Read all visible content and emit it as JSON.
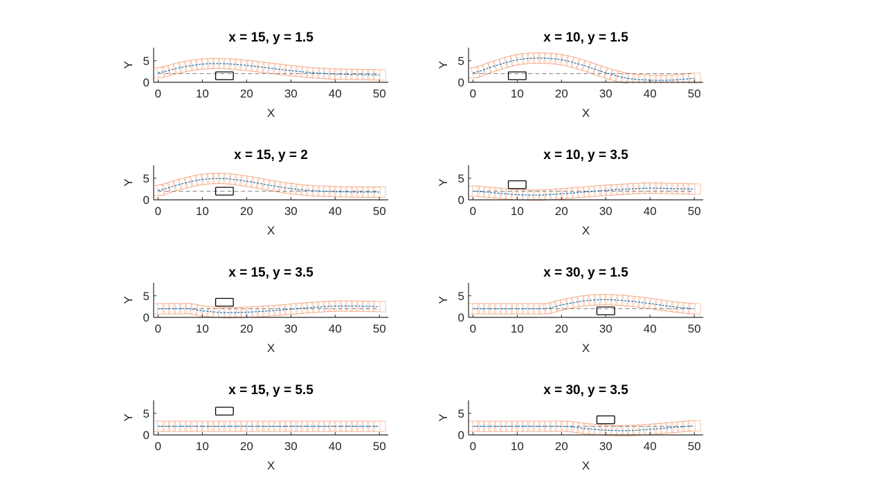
{
  "figure": {
    "background": "#ffffff"
  },
  "style": {
    "path_color": "#0072BD",
    "footprint_color": "#F4A582",
    "obstacle_color": "#000000",
    "reference_color": "#808080",
    "axis_color": "#262626"
  },
  "chart_data": [
    {
      "type": "line",
      "title": "x = 15, y = 1.5",
      "xlabel": "X",
      "ylabel": "Y",
      "xlim": [
        -1,
        52
      ],
      "ylim": [
        0,
        8
      ],
      "xticks": [
        0,
        10,
        20,
        30,
        40,
        50
      ],
      "yticks": [
        0,
        5
      ],
      "obstacle": {
        "x": 15,
        "y": 1.5,
        "length": 4,
        "width": 1.8
      },
      "reference_y": 2,
      "path": {
        "x": [
          0,
          5,
          10,
          15,
          20,
          25,
          30,
          35,
          40,
          45,
          50
        ],
        "y": [
          2.2,
          3.4,
          4.2,
          4.3,
          3.9,
          3.3,
          2.7,
          2.2,
          1.9,
          1.8,
          1.7
        ]
      }
    },
    {
      "type": "line",
      "title": "x = 10, y = 1.5",
      "xlabel": "X",
      "ylabel": "Y",
      "xlim": [
        -1,
        52
      ],
      "ylim": [
        0,
        8
      ],
      "xticks": [
        0,
        10,
        20,
        30,
        40,
        50
      ],
      "yticks": [
        0,
        5
      ],
      "obstacle": {
        "x": 10,
        "y": 1.5,
        "length": 4,
        "width": 1.8
      },
      "reference_y": 2,
      "path": {
        "x": [
          0,
          5,
          10,
          15,
          20,
          25,
          30,
          35,
          40,
          45,
          50
        ],
        "y": [
          2.2,
          3.8,
          5.2,
          5.6,
          5.2,
          3.9,
          2.2,
          0.9,
          0.5,
          0.5,
          0.9
        ]
      }
    },
    {
      "type": "line",
      "title": "x = 15, y = 2",
      "xlabel": "X",
      "ylabel": "Y",
      "xlim": [
        -1,
        52
      ],
      "ylim": [
        0,
        8
      ],
      "xticks": [
        0,
        10,
        20,
        30,
        40,
        50
      ],
      "yticks": [
        0,
        5
      ],
      "obstacle": {
        "x": 15,
        "y": 2,
        "length": 4,
        "width": 1.8
      },
      "reference_y": 2,
      "path": {
        "x": [
          0,
          5,
          10,
          15,
          20,
          25,
          30,
          35,
          40,
          45,
          50
        ],
        "y": [
          2.2,
          3.6,
          4.7,
          4.9,
          4.3,
          3.4,
          2.6,
          2.1,
          1.9,
          1.8,
          1.8
        ]
      }
    },
    {
      "type": "line",
      "title": "x = 10, y = 3.5",
      "xlabel": "X",
      "ylabel": "Y",
      "xlim": [
        -1,
        52
      ],
      "ylim": [
        0,
        8
      ],
      "xticks": [
        0,
        10,
        20,
        30,
        40,
        50
      ],
      "yticks": [
        0,
        5
      ],
      "obstacle": {
        "x": 10,
        "y": 3.5,
        "length": 4,
        "width": 1.8
      },
      "reference_y": 2,
      "path": {
        "x": [
          0,
          5,
          10,
          15,
          20,
          25,
          30,
          35,
          40,
          45,
          50
        ],
        "y": [
          2.0,
          1.6,
          1.2,
          1.1,
          1.4,
          1.8,
          2.2,
          2.5,
          2.7,
          2.6,
          2.5
        ]
      }
    },
    {
      "type": "line",
      "title": "x = 15, y = 3.5",
      "xlabel": "X",
      "ylabel": "Y",
      "xlim": [
        -1,
        52
      ],
      "ylim": [
        0,
        8
      ],
      "xticks": [
        0,
        10,
        20,
        30,
        40,
        50
      ],
      "yticks": [
        0,
        5
      ],
      "obstacle": {
        "x": 15,
        "y": 3.5,
        "length": 4,
        "width": 1.8
      },
      "reference_y": 2,
      "path": {
        "x": [
          0,
          5,
          7,
          10,
          15,
          20,
          25,
          30,
          35,
          40,
          45,
          50
        ],
        "y": [
          2.0,
          2.0,
          2.0,
          1.5,
          1.1,
          1.2,
          1.5,
          1.9,
          2.3,
          2.6,
          2.6,
          2.5
        ]
      }
    },
    {
      "type": "line",
      "title": "x = 30, y = 1.5",
      "xlabel": "X",
      "ylabel": "Y",
      "xlim": [
        -1,
        52
      ],
      "ylim": [
        0,
        8
      ],
      "xticks": [
        0,
        10,
        20,
        30,
        40,
        50
      ],
      "yticks": [
        0,
        5
      ],
      "obstacle": {
        "x": 30,
        "y": 1.5,
        "length": 4,
        "width": 1.8
      },
      "reference_y": 2,
      "path": {
        "x": [
          0,
          5,
          10,
          15,
          17,
          20,
          25,
          30,
          35,
          40,
          45,
          50
        ],
        "y": [
          2.0,
          2.0,
          2.0,
          2.0,
          2.1,
          2.9,
          3.8,
          4.1,
          3.8,
          3.2,
          2.5,
          2.0
        ]
      }
    },
    {
      "type": "line",
      "title": "x = 15, y = 5.5",
      "xlabel": "X",
      "ylabel": "Y",
      "xlim": [
        -1,
        52
      ],
      "ylim": [
        0,
        8
      ],
      "xticks": [
        0,
        10,
        20,
        30,
        40,
        50
      ],
      "yticks": [
        0,
        5
      ],
      "obstacle": {
        "x": 15,
        "y": 5.5,
        "length": 4,
        "width": 1.8
      },
      "reference_y": 2,
      "path": {
        "x": [
          0,
          10,
          20,
          30,
          40,
          50
        ],
        "y": [
          2.0,
          2.0,
          2.0,
          2.0,
          2.0,
          2.0
        ]
      }
    },
    {
      "type": "line",
      "title": "x = 30, y = 3.5",
      "xlabel": "X",
      "ylabel": "Y",
      "xlim": [
        -1,
        52
      ],
      "ylim": [
        0,
        8
      ],
      "xticks": [
        0,
        10,
        20,
        30,
        40,
        50
      ],
      "yticks": [
        0,
        5
      ],
      "obstacle": {
        "x": 30,
        "y": 3.5,
        "length": 4,
        "width": 1.8
      },
      "reference_y": 2,
      "path": {
        "x": [
          0,
          5,
          10,
          15,
          20,
          22,
          25,
          30,
          35,
          40,
          45,
          50
        ],
        "y": [
          2.0,
          2.0,
          2.0,
          2.0,
          2.0,
          1.9,
          1.5,
          1.1,
          1.0,
          1.3,
          1.7,
          2.1
        ]
      }
    }
  ]
}
